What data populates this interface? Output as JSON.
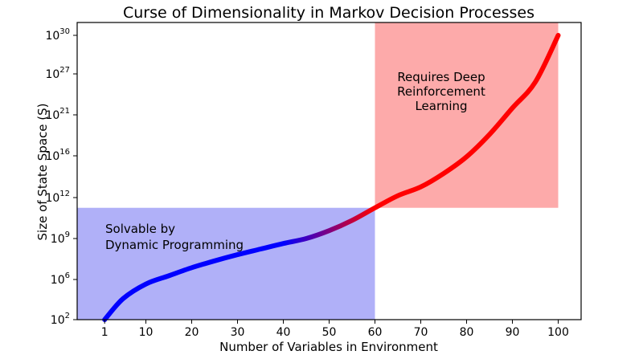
{
  "chart_data": {
    "type": "line",
    "title": "Curse of Dimensionality in Markov Decision Processes",
    "xlabel": "Number of Variables in Environment",
    "ylabel": "Size of State Space (S)",
    "xlim": [
      -5,
      105
    ],
    "x_ticks": [
      "1",
      "10",
      "20",
      "30",
      "40",
      "50",
      "60",
      "70",
      "80",
      "90",
      "100"
    ],
    "y_ticks": [
      {
        "base": "10",
        "exp": "2"
      },
      {
        "base": "10",
        "exp": "6"
      },
      {
        "base": "10",
        "exp": "9"
      },
      {
        "base": "10",
        "exp": "12"
      },
      {
        "base": "10",
        "exp": "16"
      },
      {
        "base": "10",
        "exp": "21"
      },
      {
        "base": "10",
        "exp": "27"
      },
      {
        "base": "10",
        "exp": "30"
      }
    ],
    "series": [
      {
        "x": [
          1,
          5,
          10,
          15,
          20,
          25,
          30,
          35,
          40,
          45,
          50,
          55,
          60,
          65,
          70,
          75,
          80,
          85,
          90,
          95,
          100
        ],
        "y_label_position": [
          2.45,
          4.3,
          5.6,
          6.3,
          6.95,
          7.5,
          8.0,
          8.45,
          8.9,
          9.3,
          9.8,
          10.45,
          11.25,
          12.1,
          13.05,
          14.5,
          16.3,
          18.8,
          22.0,
          25.8,
          30.6
        ],
        "color_start": "#0000ff",
        "color_end": "#ff0000",
        "color_transition_x": [
          40,
          60
        ]
      }
    ],
    "regions": [
      {
        "label": [
          "Solvable by",
          "Dynamic Programming"
        ],
        "x_range": [
          -5,
          60
        ],
        "top_label_position": 11.25,
        "color": "#b0b0f8"
      },
      {
        "label": [
          "Requires Deep",
          "Reinforcement",
          "Learning"
        ],
        "x_range": [
          60,
          100
        ],
        "top_label_position": 11.25,
        "color": "#fdaaaa"
      }
    ]
  }
}
